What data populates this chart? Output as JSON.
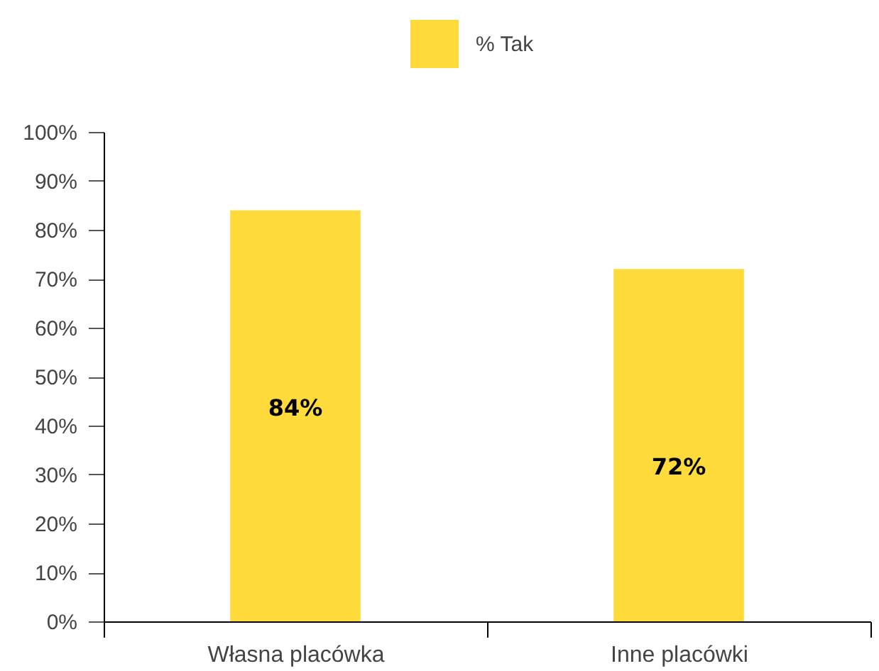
{
  "chart_data": {
    "type": "bar",
    "categories": [
      "Własna placówka",
      "Inne placówki"
    ],
    "series": [
      {
        "name": "% Tak",
        "color": "#fedb3a",
        "values": [
          84,
          72
        ],
        "value_labels": [
          "84%",
          "72%"
        ]
      }
    ],
    "ylim": [
      0,
      100
    ],
    "yticks": [
      {
        "value": 0,
        "label": "0%"
      },
      {
        "value": 10,
        "label": "10%"
      },
      {
        "value": 20,
        "label": "20%"
      },
      {
        "value": 30,
        "label": "30%"
      },
      {
        "value": 40,
        "label": "40%"
      },
      {
        "value": 50,
        "label": "50%"
      },
      {
        "value": 60,
        "label": "60%"
      },
      {
        "value": 70,
        "label": "70%"
      },
      {
        "value": 80,
        "label": "80%"
      },
      {
        "value": 90,
        "label": "90%"
      },
      {
        "value": 100,
        "label": "100%"
      }
    ],
    "grid": false,
    "legend": "top"
  }
}
